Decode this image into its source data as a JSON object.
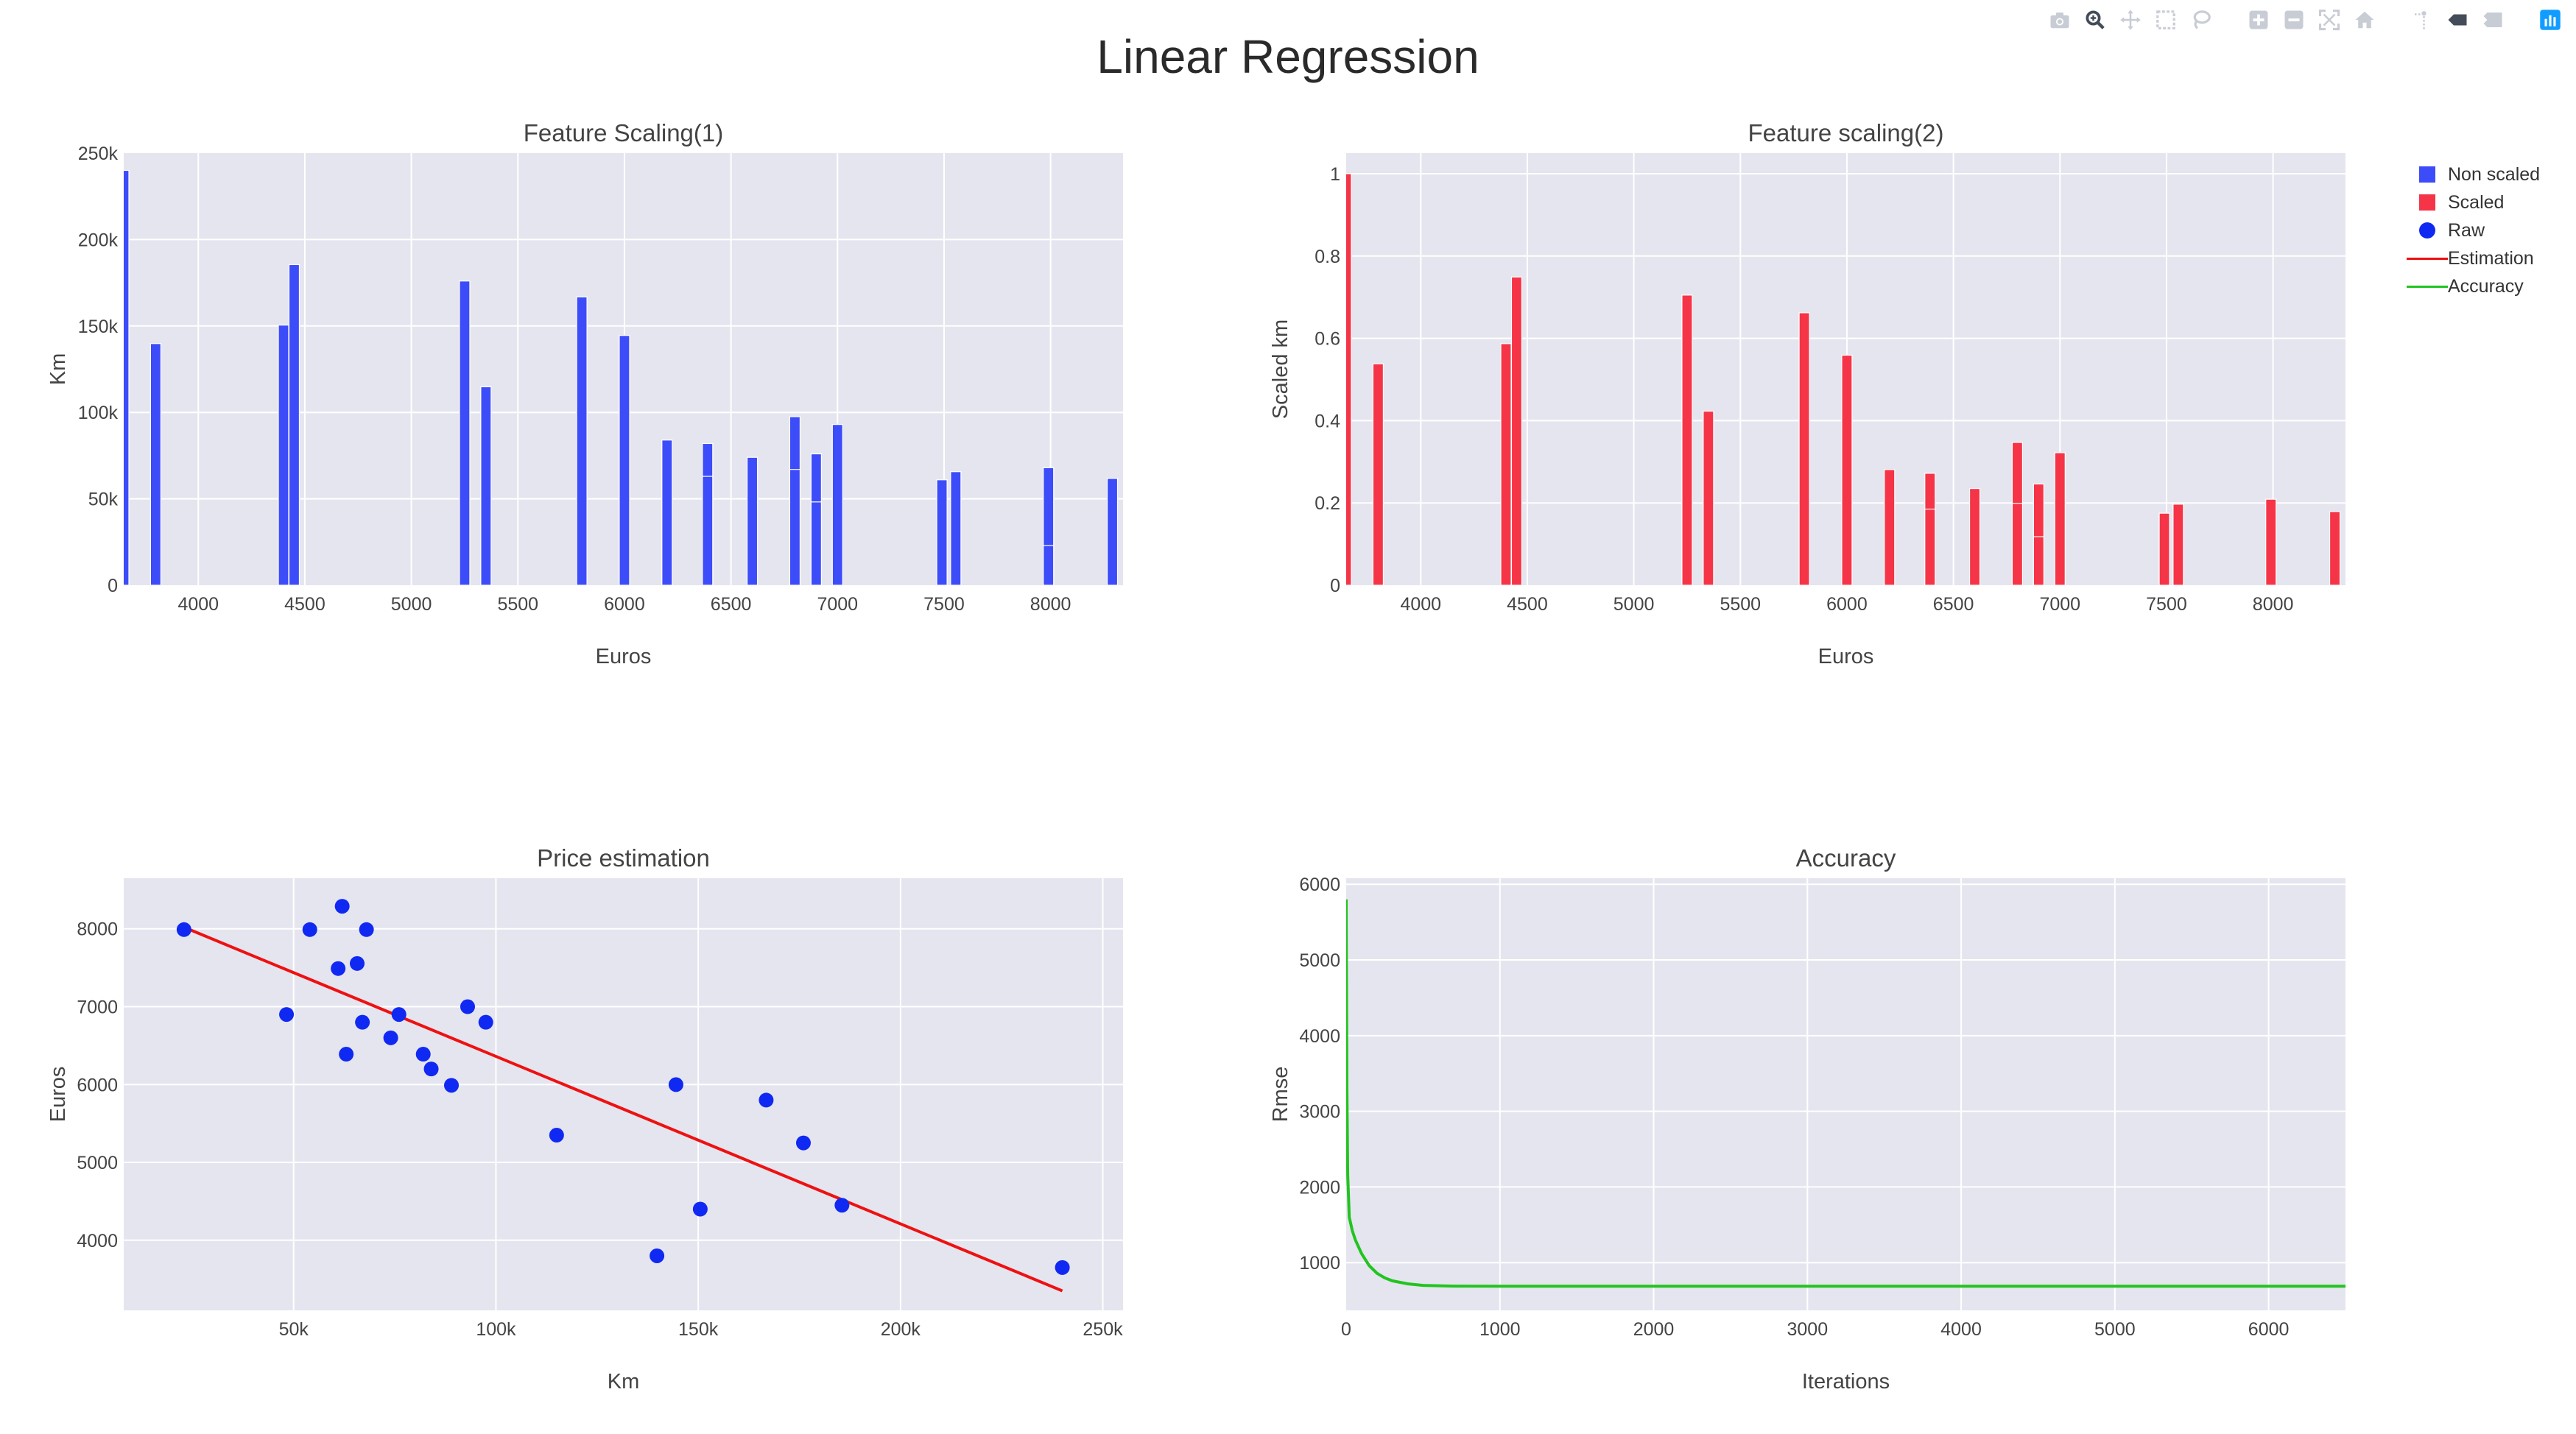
{
  "title": "Linear Regression",
  "modebar": {
    "icons": [
      "camera-icon",
      "zoom-icon",
      "pan-icon",
      "box-select-icon",
      "lasso-select-icon",
      "zoom-in-icon",
      "zoom-out-icon",
      "autoscale-icon",
      "reset-axes-icon",
      "spike-lines-icon",
      "hover-closest-icon",
      "hover-compare-icon",
      "plotly-logo-icon"
    ]
  },
  "legend": {
    "items": [
      {
        "label": "Non scaled",
        "symbol": "square",
        "color": "#3d4cf9"
      },
      {
        "label": "Scaled",
        "symbol": "square",
        "color": "#f53447"
      },
      {
        "label": "Raw",
        "symbol": "dot",
        "color": "#1029f2"
      },
      {
        "label": "Estimation",
        "symbol": "line",
        "color": "#ee1111"
      },
      {
        "label": "Accuracy",
        "symbol": "line",
        "color": "#22c41f"
      }
    ]
  },
  "chart_data": [
    {
      "type": "bar",
      "title": "Feature Scaling(1)",
      "xlabel": "Euros",
      "ylabel": "Km",
      "series_name": "Non scaled",
      "color": "#3d4cf9",
      "xlim": [
        3650,
        8340
      ],
      "ylim": [
        0,
        250000
      ],
      "xticks": [
        4000,
        4500,
        5000,
        5500,
        6000,
        6500,
        7000,
        7500,
        8000
      ],
      "xticklabels": [
        "4000",
        "4500",
        "5000",
        "5500",
        "6000",
        "6500",
        "7000",
        "7500",
        "8000"
      ],
      "yticks": [
        0,
        50000,
        100000,
        150000,
        200000,
        250000
      ],
      "yticklabels": [
        "0",
        "50k",
        "100k",
        "150k",
        "200k",
        "250k"
      ],
      "bars": [
        {
          "x": 3650,
          "y": 240000
        },
        {
          "x": 3800,
          "y": 139800
        },
        {
          "x": 4400,
          "y": 150500
        },
        {
          "x": 4450,
          "y": 185500
        },
        {
          "x": 5250,
          "y": 176000
        },
        {
          "x": 5350,
          "y": 114800
        },
        {
          "x": 5800,
          "y": 166800
        },
        {
          "x": 6000,
          "y": 144500
        },
        {
          "x": 6200,
          "y": 84000
        },
        {
          "x": 6390,
          "y": 82000
        },
        {
          "x": 6390,
          "y": 63000
        },
        {
          "x": 6600,
          "y": 74000
        },
        {
          "x": 6800,
          "y": 97500
        },
        {
          "x": 6800,
          "y": 67000
        },
        {
          "x": 6900,
          "y": 76000
        },
        {
          "x": 6900,
          "y": 48200
        },
        {
          "x": 7000,
          "y": 93000
        },
        {
          "x": 7490,
          "y": 61000
        },
        {
          "x": 7555,
          "y": 65700
        },
        {
          "x": 7990,
          "y": 54700
        },
        {
          "x": 7990,
          "y": 68000
        },
        {
          "x": 7990,
          "y": 22900
        },
        {
          "x": 8290,
          "y": 61800
        }
      ]
    },
    {
      "type": "bar",
      "title": "Feature scaling(2)",
      "xlabel": "Euros",
      "ylabel": "Scaled km",
      "series_name": "Scaled",
      "color": "#f53447",
      "xlim": [
        3650,
        8340
      ],
      "ylim": [
        0,
        1.05
      ],
      "xticks": [
        4000,
        4500,
        5000,
        5500,
        6000,
        6500,
        7000,
        7500,
        8000
      ],
      "xticklabels": [
        "4000",
        "4500",
        "5000",
        "5500",
        "6000",
        "6500",
        "7000",
        "7500",
        "8000"
      ],
      "yticks": [
        0,
        0.2,
        0.4,
        0.6,
        0.8,
        1
      ],
      "yticklabels": [
        "0",
        "0.2",
        "0.4",
        "0.6",
        "0.8",
        "1"
      ],
      "bars": [
        {
          "x": 3650,
          "y": 1.0
        },
        {
          "x": 3800,
          "y": 0.538
        },
        {
          "x": 4400,
          "y": 0.587
        },
        {
          "x": 4450,
          "y": 0.749
        },
        {
          "x": 5250,
          "y": 0.705
        },
        {
          "x": 5350,
          "y": 0.423
        },
        {
          "x": 5800,
          "y": 0.662
        },
        {
          "x": 6000,
          "y": 0.559
        },
        {
          "x": 6200,
          "y": 0.281
        },
        {
          "x": 6390,
          "y": 0.272
        },
        {
          "x": 6390,
          "y": 0.185
        },
        {
          "x": 6600,
          "y": 0.235
        },
        {
          "x": 6800,
          "y": 0.347
        },
        {
          "x": 6800,
          "y": 0.199
        },
        {
          "x": 6900,
          "y": 0.246
        },
        {
          "x": 6900,
          "y": 0.118
        },
        {
          "x": 7000,
          "y": 0.322
        },
        {
          "x": 7490,
          "y": 0.175
        },
        {
          "x": 7555,
          "y": 0.197
        },
        {
          "x": 7990,
          "y": 0.144
        },
        {
          "x": 7990,
          "y": 0.209
        },
        {
          "x": 8290,
          "y": 0.179
        }
      ]
    },
    {
      "type": "scatter",
      "title": "Price estimation",
      "xlabel": "Km",
      "ylabel": "Euros",
      "xlim": [
        8000,
        255000
      ],
      "ylim": [
        3100,
        8650
      ],
      "xticks": [
        50000,
        100000,
        150000,
        200000,
        250000
      ],
      "xticklabels": [
        "50k",
        "100k",
        "150k",
        "200k",
        "250k"
      ],
      "yticks": [
        4000,
        5000,
        6000,
        7000,
        8000
      ],
      "yticklabels": [
        "4000",
        "5000",
        "6000",
        "7000",
        "8000"
      ],
      "series": [
        {
          "name": "Raw",
          "color": "#1029f2",
          "points": [
            {
              "x": 22899,
              "y": 7990
            },
            {
              "x": 48235,
              "y": 6900
            },
            {
              "x": 54000,
              "y": 7990
            },
            {
              "x": 61000,
              "y": 7490
            },
            {
              "x": 62000,
              "y": 8290
            },
            {
              "x": 63000,
              "y": 6390
            },
            {
              "x": 65700,
              "y": 7555
            },
            {
              "x": 67000,
              "y": 6800
            },
            {
              "x": 68000,
              "y": 7990
            },
            {
              "x": 74000,
              "y": 6600
            },
            {
              "x": 76025,
              "y": 6900
            },
            {
              "x": 82029,
              "y": 6390
            },
            {
              "x": 84000,
              "y": 6200
            },
            {
              "x": 89000,
              "y": 5990
            },
            {
              "x": 93000,
              "y": 7000
            },
            {
              "x": 97500,
              "y": 6800
            },
            {
              "x": 115000,
              "y": 5350
            },
            {
              "x": 139800,
              "y": 3800
            },
            {
              "x": 144500,
              "y": 5999
            },
            {
              "x": 150500,
              "y": 4400
            },
            {
              "x": 166800,
              "y": 5800
            },
            {
              "x": 176000,
              "y": 5250
            },
            {
              "x": 185530,
              "y": 4450
            },
            {
              "x": 240000,
              "y": 3650
            }
          ]
        },
        {
          "name": "Estimation",
          "color": "#ee1111",
          "line": [
            {
              "x": 22899,
              "y": 8020
            },
            {
              "x": 240000,
              "y": 3350
            }
          ]
        }
      ]
    },
    {
      "type": "line",
      "title": "Accuracy",
      "xlabel": "Iterations",
      "ylabel": "Rmse",
      "xlim": [
        0,
        6500
      ],
      "ylim": [
        370,
        6080
      ],
      "xticks": [
        0,
        1000,
        2000,
        3000,
        4000,
        5000,
        6000
      ],
      "xticklabels": [
        "0",
        "1000",
        "2000",
        "3000",
        "4000",
        "5000",
        "6000"
      ],
      "yticks": [
        1000,
        2000,
        3000,
        4000,
        5000,
        6000
      ],
      "yticklabels": [
        "1000",
        "2000",
        "3000",
        "4000",
        "5000",
        "6000"
      ],
      "series": [
        {
          "name": "Accuracy",
          "color": "#22c41f",
          "x": [
            0,
            5,
            10,
            20,
            40,
            60,
            100,
            150,
            200,
            250,
            300,
            400,
            500,
            700,
            1000,
            2000,
            4000,
            6500
          ],
          "y": [
            5800,
            3300,
            2150,
            1600,
            1420,
            1300,
            1120,
            960,
            860,
            800,
            760,
            720,
            700,
            690,
            688,
            688,
            688,
            688
          ]
        }
      ]
    }
  ]
}
